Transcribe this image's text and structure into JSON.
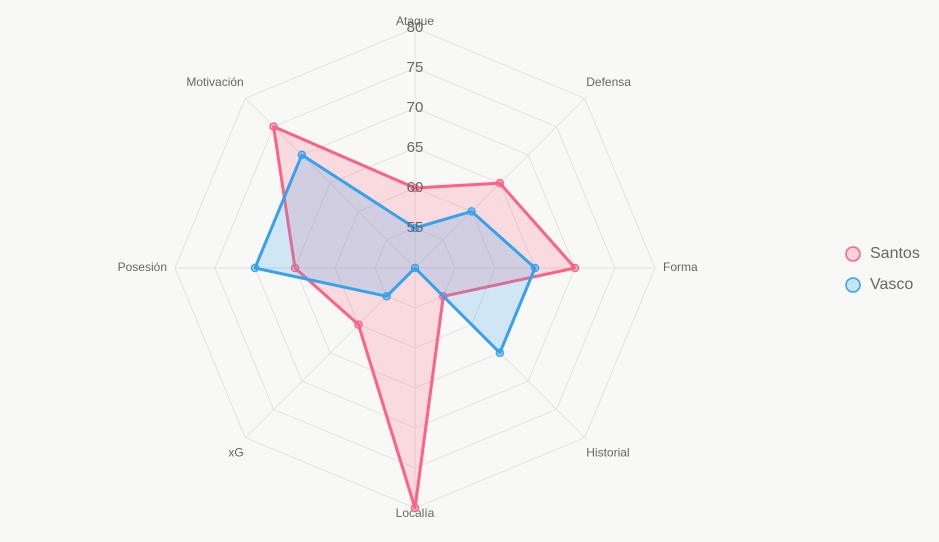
{
  "chart_data": {
    "type": "radar",
    "categories": [
      "Ataque",
      "Defensa",
      "Forma",
      "Historial",
      "Localía",
      "xG",
      "Posesión",
      "Motivación"
    ],
    "series": [
      {
        "name": "Santos",
        "color": "#ff6384",
        "values": [
          60,
          65,
          70,
          55,
          80,
          60,
          65,
          75
        ]
      },
      {
        "name": "Vasco",
        "color": "#36a2eb",
        "values": [
          55,
          60,
          65,
          65,
          50,
          55,
          70,
          70
        ]
      }
    ],
    "rlim": [
      50,
      80
    ],
    "rticks": [
      55,
      60,
      65,
      70,
      75,
      80
    ],
    "grid": true,
    "legend": "right"
  }
}
